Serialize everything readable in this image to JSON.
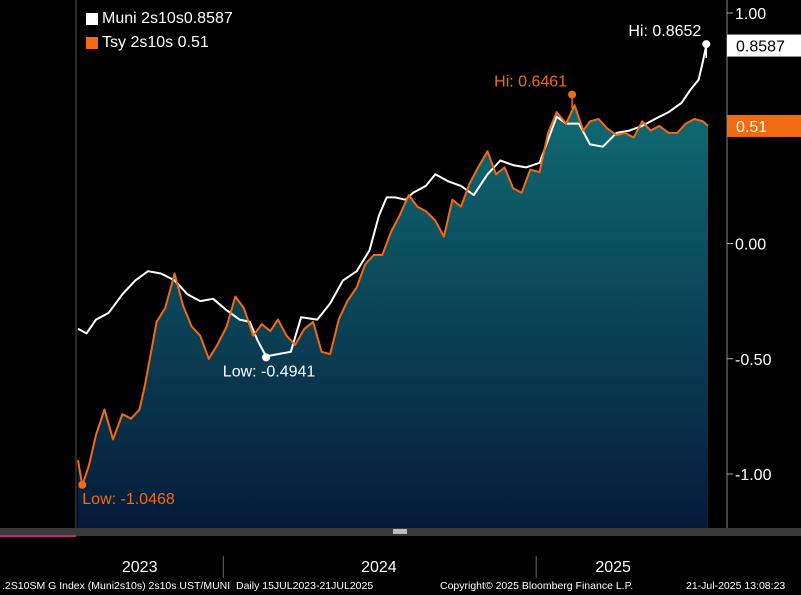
{
  "legend": {
    "items": [
      {
        "label": "Muni 2s10s",
        "value": "0.8587",
        "color": "#ffffff"
      },
      {
        "label": "Tsy 2s10s ",
        "value": "0.51",
        "color": "#f26a12"
      }
    ]
  },
  "footer": {
    "left": ".2S10SM G Index (Muni2s10s) 2s10s UST/MUNI  Daily 15JUL2023-21JUL2025",
    "center": "Copyright© 2025 Bloomberg Finance L.P.",
    "right": "21-Jul-2025 13:08:23"
  },
  "chart_data": {
    "type": "line",
    "x_ticks": [
      "2023",
      "2024",
      "2025"
    ],
    "y_ticks": [
      "1.00",
      "0.50",
      "0.00",
      "-0.50",
      "-1.00"
    ],
    "ylim": [
      -1.2,
      1.1
    ],
    "xlim": [
      "2023-07-15",
      "2025-07-21"
    ],
    "series": [
      {
        "name": "Muni 2s10s",
        "color": "#ffffff",
        "last_value": "0.8587",
        "points": [
          [
            "2023-07-15",
            -0.37
          ],
          [
            "2023-07-25",
            -0.39
          ],
          [
            "2023-08-05",
            -0.33
          ],
          [
            "2023-08-20",
            -0.3
          ],
          [
            "2023-09-05",
            -0.22
          ],
          [
            "2023-09-20",
            -0.16
          ],
          [
            "2023-10-05",
            -0.12
          ],
          [
            "2023-10-20",
            -0.13
          ],
          [
            "2023-11-05",
            -0.16
          ],
          [
            "2023-11-20",
            -0.22
          ],
          [
            "2023-12-05",
            -0.25
          ],
          [
            "2023-12-20",
            -0.24
          ],
          [
            "2024-01-05",
            -0.29
          ],
          [
            "2024-01-20",
            -0.33
          ],
          [
            "2024-02-01",
            -0.34
          ],
          [
            "2024-02-10",
            -0.42
          ],
          [
            "2024-02-20",
            -0.49
          ],
          [
            "2024-03-05",
            -0.48
          ],
          [
            "2024-03-20",
            -0.47
          ],
          [
            "2024-04-01",
            -0.32
          ],
          [
            "2024-04-20",
            -0.33
          ],
          [
            "2024-05-05",
            -0.26
          ],
          [
            "2024-05-20",
            -0.16
          ],
          [
            "2024-06-05",
            -0.12
          ],
          [
            "2024-06-20",
            -0.03
          ],
          [
            "2024-07-01",
            0.12
          ],
          [
            "2024-07-10",
            0.2
          ],
          [
            "2024-07-20",
            0.2
          ],
          [
            "2024-08-01",
            0.19
          ],
          [
            "2024-08-10",
            0.22
          ],
          [
            "2024-08-25",
            0.25
          ],
          [
            "2024-09-05",
            0.3
          ],
          [
            "2024-09-20",
            0.27
          ],
          [
            "2024-10-05",
            0.25
          ],
          [
            "2024-10-20",
            0.21
          ],
          [
            "2024-11-05",
            0.3
          ],
          [
            "2024-11-20",
            0.36
          ],
          [
            "2024-12-05",
            0.34
          ],
          [
            "2024-12-20",
            0.33
          ],
          [
            "2025-01-05",
            0.35
          ],
          [
            "2025-01-15",
            0.45
          ],
          [
            "2025-01-25",
            0.55
          ],
          [
            "2025-02-05",
            0.52
          ],
          [
            "2025-02-20",
            0.52
          ],
          [
            "2025-03-05",
            0.43
          ],
          [
            "2025-03-20",
            0.42
          ],
          [
            "2025-04-05",
            0.48
          ],
          [
            "2025-04-20",
            0.49
          ],
          [
            "2025-05-05",
            0.51
          ],
          [
            "2025-05-20",
            0.54
          ],
          [
            "2025-06-05",
            0.57
          ],
          [
            "2025-06-20",
            0.61
          ],
          [
            "2025-07-01",
            0.67
          ],
          [
            "2025-07-10",
            0.71
          ],
          [
            "2025-07-15",
            0.79
          ],
          [
            "2025-07-19",
            0.86
          ],
          [
            "2025-07-21",
            0.8587
          ]
        ]
      },
      {
        "name": "Tsy 2s10s",
        "color": "#f26a12",
        "last_value": "0.51",
        "points": [
          [
            "2023-07-15",
            -0.94
          ],
          [
            "2023-07-20",
            -1.05
          ],
          [
            "2023-07-28",
            -0.96
          ],
          [
            "2023-08-05",
            -0.83
          ],
          [
            "2023-08-15",
            -0.72
          ],
          [
            "2023-08-25",
            -0.85
          ],
          [
            "2023-09-05",
            -0.74
          ],
          [
            "2023-09-15",
            -0.76
          ],
          [
            "2023-09-25",
            -0.72
          ],
          [
            "2023-10-01",
            -0.62
          ],
          [
            "2023-10-08",
            -0.48
          ],
          [
            "2023-10-15",
            -0.34
          ],
          [
            "2023-10-25",
            -0.28
          ],
          [
            "2023-11-05",
            -0.13
          ],
          [
            "2023-11-15",
            -0.27
          ],
          [
            "2023-11-25",
            -0.36
          ],
          [
            "2023-12-05",
            -0.4
          ],
          [
            "2023-12-15",
            -0.5
          ],
          [
            "2023-12-25",
            -0.44
          ],
          [
            "2024-01-05",
            -0.36
          ],
          [
            "2024-01-15",
            -0.23
          ],
          [
            "2024-01-25",
            -0.28
          ],
          [
            "2024-02-05",
            -0.4
          ],
          [
            "2024-02-15",
            -0.35
          ],
          [
            "2024-02-25",
            -0.38
          ],
          [
            "2024-03-05",
            -0.33
          ],
          [
            "2024-03-15",
            -0.4
          ],
          [
            "2024-03-25",
            -0.44
          ],
          [
            "2024-04-05",
            -0.37
          ],
          [
            "2024-04-15",
            -0.34
          ],
          [
            "2024-04-25",
            -0.47
          ],
          [
            "2024-05-05",
            -0.48
          ],
          [
            "2024-05-15",
            -0.33
          ],
          [
            "2024-05-25",
            -0.25
          ],
          [
            "2024-06-05",
            -0.19
          ],
          [
            "2024-06-15",
            -0.09
          ],
          [
            "2024-06-25",
            -0.05
          ],
          [
            "2024-07-05",
            -0.05
          ],
          [
            "2024-07-15",
            0.05
          ],
          [
            "2024-07-25",
            0.12
          ],
          [
            "2024-08-05",
            0.21
          ],
          [
            "2024-08-15",
            0.16
          ],
          [
            "2024-08-25",
            0.14
          ],
          [
            "2024-09-05",
            0.1
          ],
          [
            "2024-09-15",
            0.03
          ],
          [
            "2024-09-25",
            0.19
          ],
          [
            "2024-10-05",
            0.16
          ],
          [
            "2024-10-15",
            0.26
          ],
          [
            "2024-10-25",
            0.33
          ],
          [
            "2024-11-05",
            0.4
          ],
          [
            "2024-11-15",
            0.3
          ],
          [
            "2024-11-25",
            0.33
          ],
          [
            "2024-12-05",
            0.24
          ],
          [
            "2024-12-15",
            0.22
          ],
          [
            "2024-12-25",
            0.32
          ],
          [
            "2025-01-05",
            0.31
          ],
          [
            "2025-01-15",
            0.48
          ],
          [
            "2025-01-25",
            0.57
          ],
          [
            "2025-02-05",
            0.52
          ],
          [
            "2025-02-15",
            0.6
          ],
          [
            "2025-02-25",
            0.49
          ],
          [
            "2025-03-05",
            0.53
          ],
          [
            "2025-03-15",
            0.54
          ],
          [
            "2025-03-25",
            0.5
          ],
          [
            "2025-04-05",
            0.47
          ],
          [
            "2025-04-15",
            0.48
          ],
          [
            "2025-04-25",
            0.46
          ],
          [
            "2025-05-05",
            0.53
          ],
          [
            "2025-05-15",
            0.49
          ],
          [
            "2025-05-25",
            0.51
          ],
          [
            "2025-06-05",
            0.48
          ],
          [
            "2025-06-15",
            0.48
          ],
          [
            "2025-06-25",
            0.52
          ],
          [
            "2025-07-05",
            0.54
          ],
          [
            "2025-07-15",
            0.53
          ],
          [
            "2025-07-21",
            0.51
          ]
        ]
      }
    ],
    "annotations": [
      {
        "series": 0,
        "label": "Hi: 0.8652",
        "x": "2025-07-19",
        "y": 0.8652,
        "color": "#ffffff"
      },
      {
        "series": 0,
        "label": "Low: -0.4941",
        "x": "2024-02-20",
        "y": -0.4941,
        "color": "#ffffff"
      },
      {
        "series": 1,
        "label": "Hi: 0.6461",
        "x": "2025-02-12",
        "y": 0.6461,
        "color": "#f26a12"
      },
      {
        "series": 1,
        "label": "Low: -1.0468",
        "x": "2023-07-20",
        "y": -1.0468,
        "color": "#f26a12"
      }
    ],
    "grid": false,
    "area_fill": "Tsy 2s10s",
    "legend_position": "top-left"
  }
}
